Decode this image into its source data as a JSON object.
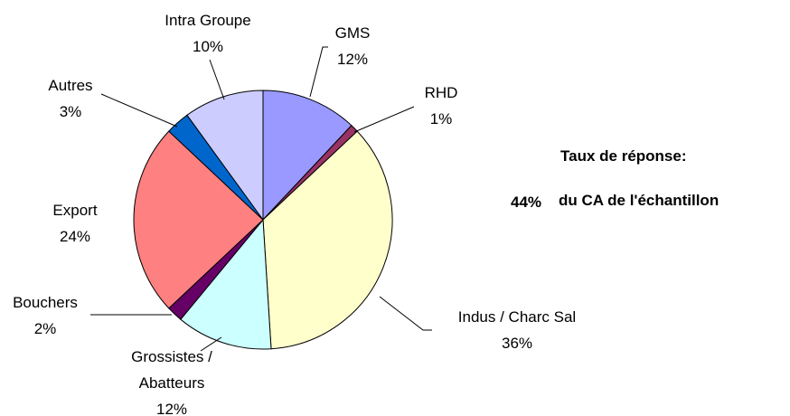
{
  "chart_data": {
    "type": "pie",
    "categories": [
      "GMS",
      "RHD",
      "Indus / Charc Sal",
      "Grossistes / Abatteurs",
      "Bouchers",
      "Export",
      "Autres",
      "Intra Groupe"
    ],
    "values": [
      12,
      1,
      36,
      12,
      2,
      24,
      3,
      10
    ],
    "value_labels": [
      "12%",
      "1%",
      "36%",
      "12%",
      "2%",
      "24%",
      "3%",
      "10%"
    ],
    "colors": [
      "#9999ff",
      "#993366",
      "#ffffcc",
      "#ccffff",
      "#660066",
      "#ff8080",
      "#0066cc",
      "#ccccff"
    ],
    "annotation": {
      "title": "Taux de réponse:",
      "value": "44%",
      "text": "du CA de l'échantillon"
    }
  }
}
